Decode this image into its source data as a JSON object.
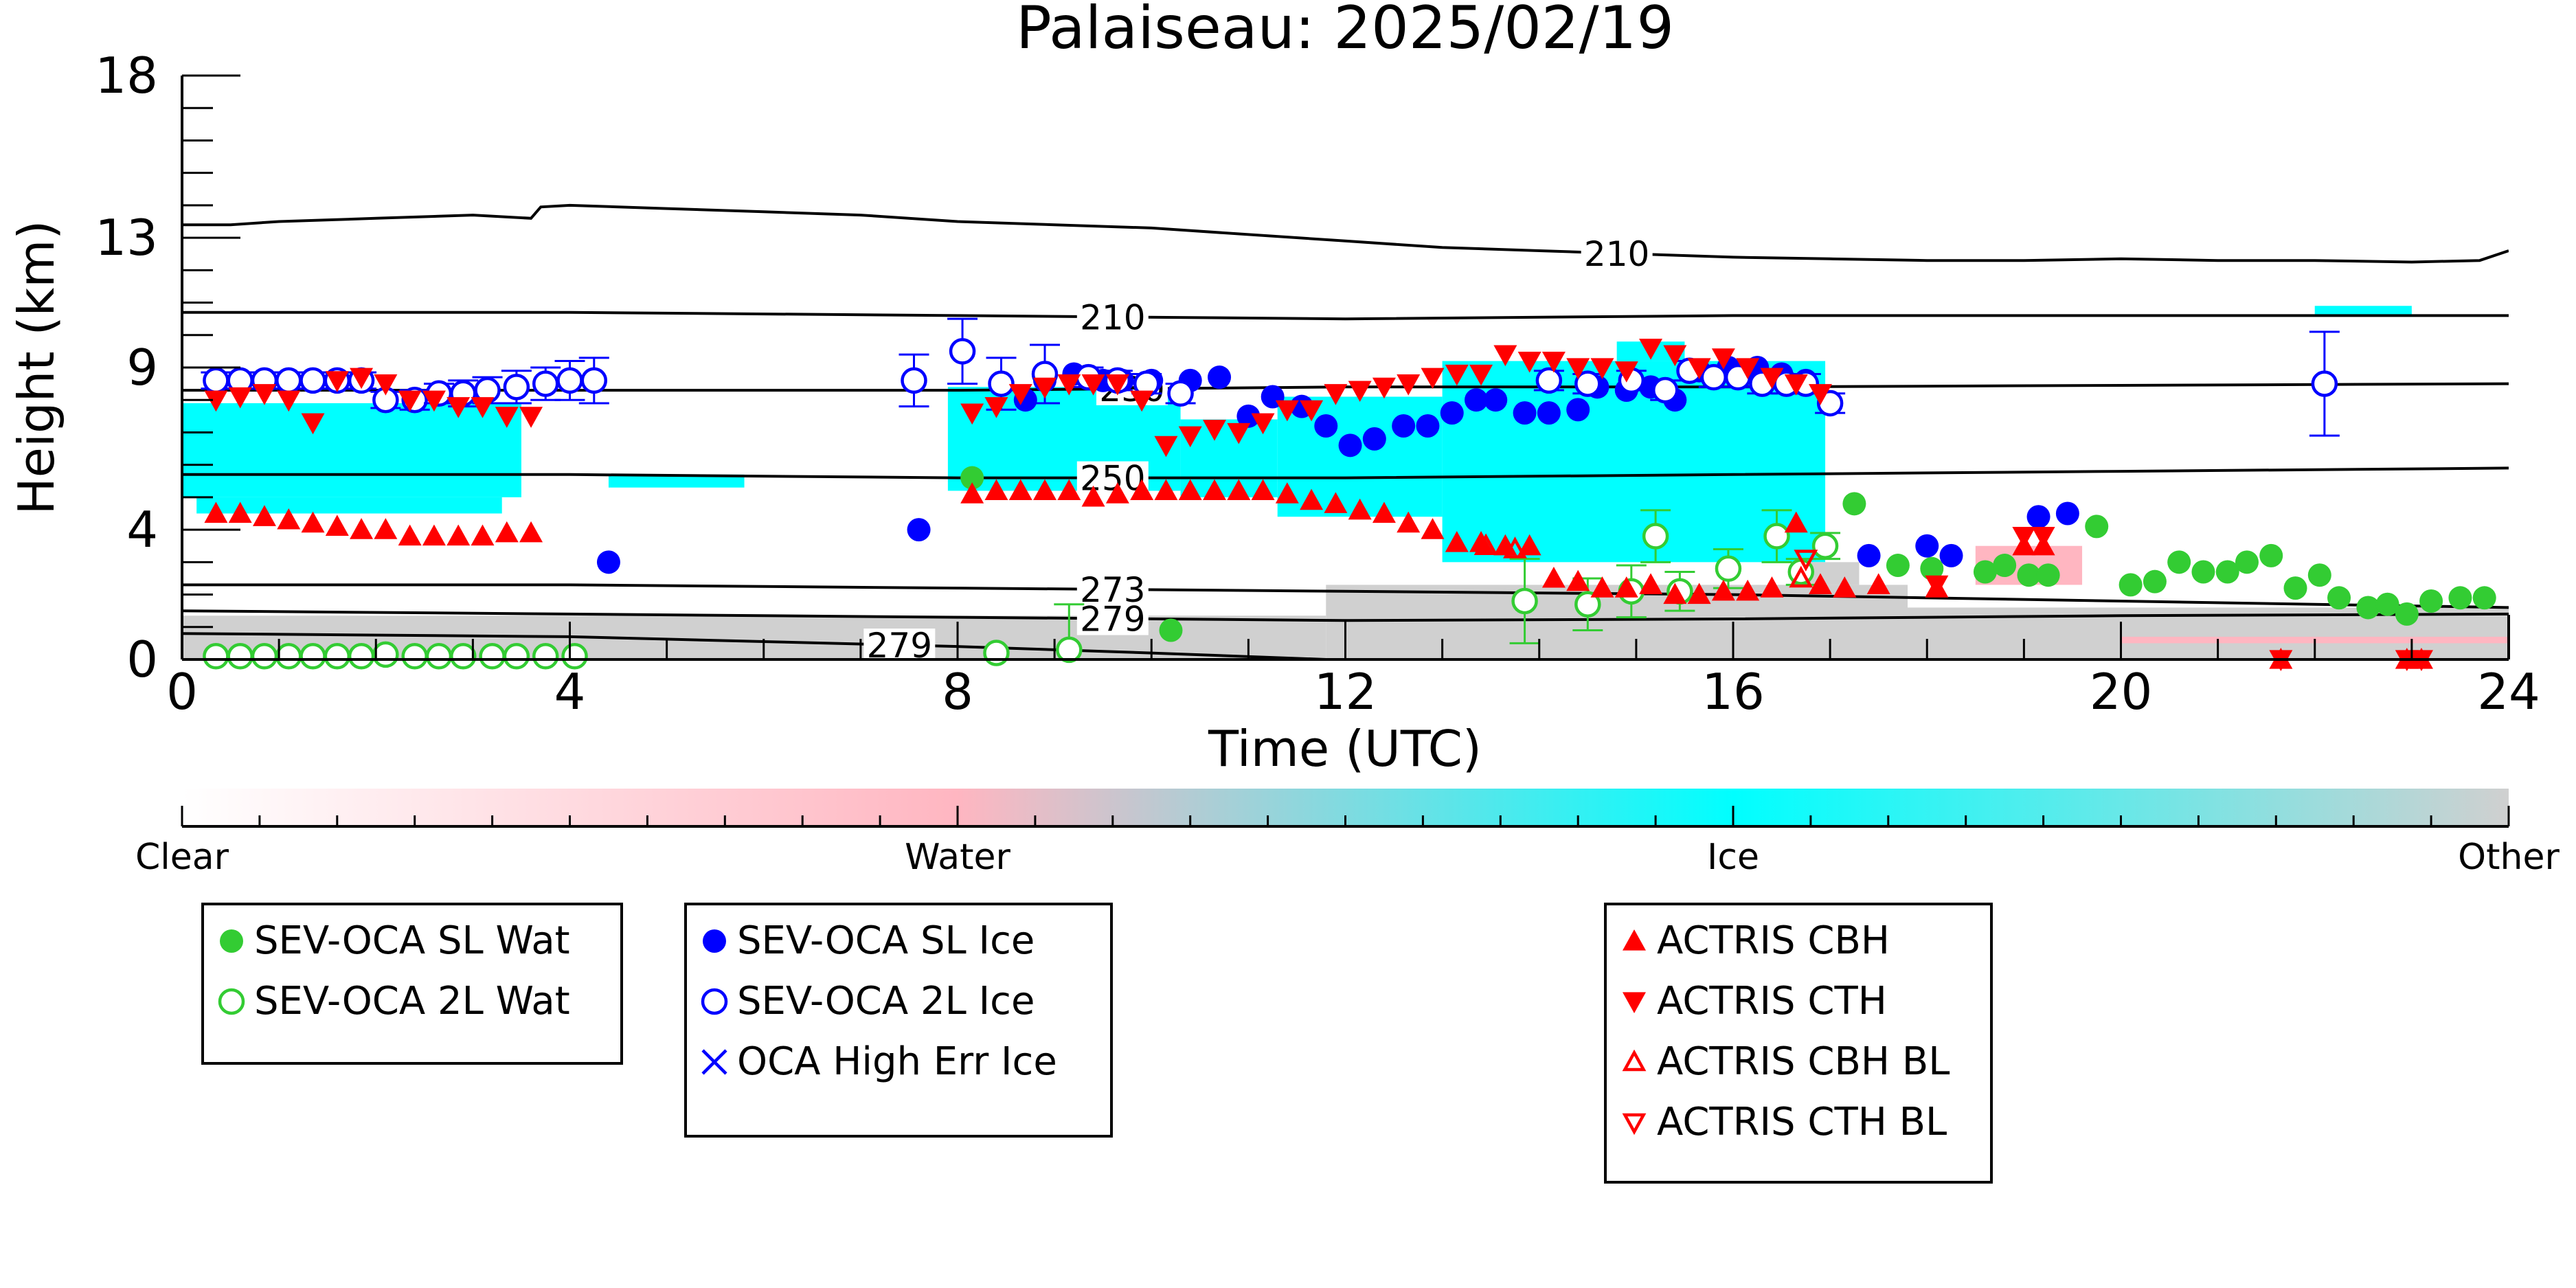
{
  "chart_data": {
    "type": "scatter",
    "title": "Palaiseau: 2025/02/19",
    "xlabel": "Time (UTC)",
    "ylabel": "Height (km)",
    "xlim": [
      0,
      24
    ],
    "ylim": [
      0,
      18
    ],
    "xticks": [
      0,
      4,
      8,
      12,
      16,
      20,
      24
    ],
    "yticks": [
      0,
      4,
      9,
      13,
      18
    ],
    "grid": false,
    "colors": {
      "water_marker": "#33cc33",
      "ice_marker": "#0000ff",
      "actris_marker": "#ff0000",
      "ice_mask": "#00ffff",
      "other_mask": "#d0d0d0",
      "water_mask": "#ffb6c1"
    },
    "colorbar": {
      "labels": [
        "Clear",
        "Water",
        "Ice",
        "Other"
      ],
      "colors": [
        "#ffffff",
        "#ffb6c1",
        "#00ffff",
        "#d0d0d0"
      ]
    },
    "contours": [
      {
        "label": "210",
        "label_x": 14.8,
        "x": [
          0,
          0.5,
          1,
          2,
          3,
          3.6,
          3.7,
          4,
          5,
          6,
          7,
          8,
          9,
          10,
          11,
          12,
          13,
          14,
          15,
          16,
          17,
          18,
          19,
          20,
          21,
          22,
          23,
          23.7,
          24
        ],
        "y": [
          13.4,
          13.4,
          13.5,
          13.6,
          13.7,
          13.6,
          13.95,
          14.0,
          13.9,
          13.8,
          13.7,
          13.5,
          13.4,
          13.3,
          13.1,
          12.9,
          12.7,
          12.6,
          12.5,
          12.4,
          12.35,
          12.3,
          12.3,
          12.35,
          12.3,
          12.3,
          12.25,
          12.3,
          12.6
        ]
      },
      {
        "label": "210",
        "label_x": 9.6,
        "x": [
          0,
          4,
          8,
          12,
          16,
          20,
          24
        ],
        "y": [
          10.7,
          10.7,
          10.6,
          10.5,
          10.6,
          10.6,
          10.6
        ]
      },
      {
        "label": "230",
        "label_x": 9.8,
        "x": [
          0,
          4,
          8,
          12,
          16,
          20,
          24
        ],
        "y": [
          8.3,
          8.3,
          8.3,
          8.4,
          8.4,
          8.45,
          8.5
        ]
      },
      {
        "label": "250",
        "label_x": 9.6,
        "x": [
          0,
          4,
          8,
          12,
          16,
          20,
          24
        ],
        "y": [
          5.7,
          5.7,
          5.6,
          5.6,
          5.7,
          5.8,
          5.9
        ]
      },
      {
        "label": "273",
        "label_x": 9.6,
        "x": [
          0,
          4,
          8,
          12,
          16,
          20,
          24
        ],
        "y": [
          2.3,
          2.3,
          2.2,
          2.1,
          2.0,
          1.8,
          1.6
        ]
      },
      {
        "label": "279",
        "label_x": 9.6,
        "x": [
          0,
          4,
          8,
          12,
          16,
          20,
          24
        ],
        "y": [
          1.5,
          1.4,
          1.3,
          1.2,
          1.25,
          1.35,
          1.4
        ]
      },
      {
        "label": "279",
        "label_x": 7.4,
        "x": [
          0,
          4,
          6,
          8,
          10,
          11.8
        ],
        "y": [
          0.8,
          0.7,
          0.55,
          0.4,
          0.2,
          0.0
        ]
      }
    ],
    "series": [
      {
        "name": "SEV-OCA SL Wat",
        "marker": "circle-filled",
        "color": "#33cc33",
        "x": [
          8.15,
          10.2,
          17.25,
          17.7,
          18.05,
          18.6,
          18.8,
          19.05,
          19.25,
          19.75,
          20.1,
          20.35,
          20.6,
          20.85,
          21.1,
          21.3,
          21.55,
          21.8,
          22.05,
          22.25,
          22.55,
          22.75,
          22.95,
          23.2,
          23.5,
          23.75
        ],
        "y": [
          5.6,
          0.9,
          4.8,
          2.9,
          2.8,
          2.7,
          2.9,
          2.6,
          2.6,
          4.1,
          2.3,
          2.4,
          3.0,
          2.7,
          2.7,
          3.0,
          3.2,
          2.2,
          2.6,
          1.9,
          1.6,
          1.7,
          1.4,
          1.8,
          1.9,
          1.9
        ]
      },
      {
        "name": "SEV-OCA 2L Wat",
        "marker": "circle-open",
        "color": "#33cc33",
        "err": [
          0,
          0,
          0,
          0,
          0,
          0,
          0,
          0,
          0,
          0,
          0,
          0,
          0,
          0,
          0,
          0,
          1.4,
          1.3,
          0.8,
          0.8,
          0.8,
          0.6,
          0.6,
          0.8,
          0.4,
          0.4
        ],
        "x": [
          0.35,
          0.6,
          0.85,
          1.1,
          1.35,
          1.6,
          1.85,
          2.1,
          2.4,
          2.65,
          2.9,
          3.2,
          3.45,
          3.75,
          4.05,
          8.4,
          9.15,
          13.85,
          14.5,
          14.95,
          15.2,
          15.45,
          15.95,
          16.45,
          16.7,
          16.95
        ],
        "y": [
          0.1,
          0.1,
          0.1,
          0.1,
          0.1,
          0.1,
          0.1,
          0.15,
          0.1,
          0.1,
          0.1,
          0.1,
          0.1,
          0.1,
          0.1,
          0.2,
          0.3,
          1.8,
          1.7,
          2.1,
          3.8,
          2.1,
          2.8,
          3.8,
          2.7,
          3.5
        ]
      },
      {
        "name": "SEV-OCA SL Ice",
        "marker": "circle-filled",
        "color": "#0000ff",
        "x": [
          4.4,
          7.6,
          8.7,
          8.9,
          9.2,
          9.5,
          9.7,
          10.0,
          10.4,
          10.7,
          11.0,
          11.25,
          11.55,
          11.8,
          12.05,
          12.3,
          12.6,
          12.85,
          13.1,
          13.35,
          13.55,
          13.85,
          14.1,
          14.4,
          14.6,
          14.9,
          15.15,
          15.4,
          15.65,
          15.95,
          16.25,
          16.5,
          16.75,
          17.4,
          18.0,
          18.25,
          19.15,
          19.45
        ],
        "y": [
          3.0,
          4.0,
          8.0,
          8.6,
          8.8,
          8.6,
          8.6,
          8.6,
          8.6,
          8.7,
          7.5,
          8.1,
          7.8,
          7.2,
          6.6,
          6.8,
          7.2,
          7.2,
          7.6,
          8.0,
          8.0,
          7.6,
          7.6,
          7.7,
          8.4,
          8.3,
          8.4,
          8.0,
          8.9,
          9.0,
          9.0,
          8.8,
          8.6,
          3.2,
          3.5,
          3.2,
          4.4,
          4.5
        ]
      },
      {
        "name": "SEV-OCA 2L Ice",
        "marker": "circle-open",
        "color": "#0000ff",
        "err": [
          0.25,
          0.25,
          0.25,
          0.25,
          0.25,
          0.25,
          0.25,
          0.25,
          0.3,
          0.3,
          0.4,
          0.4,
          0.5,
          0.5,
          0.6,
          0.7,
          0.8,
          1.0,
          0.8,
          0.9,
          0.3,
          0.3,
          0.3,
          0.3,
          0.3,
          0.3,
          0.3,
          0.3,
          0.3,
          0.3,
          0.3,
          0.3,
          0.3,
          0.3,
          0.3,
          1.6
        ],
        "x": [
          0.35,
          0.6,
          0.85,
          1.1,
          1.35,
          1.6,
          1.85,
          2.1,
          2.4,
          2.65,
          2.9,
          3.15,
          3.45,
          3.75,
          4.0,
          4.25,
          7.55,
          8.05,
          8.45,
          8.9,
          9.35,
          9.65,
          9.95,
          10.3,
          14.1,
          14.5,
          14.95,
          15.3,
          15.55,
          15.8,
          16.05,
          16.3,
          16.55,
          16.75,
          17.0,
          22.1
        ],
        "y": [
          8.6,
          8.6,
          8.6,
          8.6,
          8.6,
          8.6,
          8.6,
          8.0,
          8.0,
          8.2,
          8.2,
          8.3,
          8.4,
          8.5,
          8.6,
          8.6,
          8.6,
          9.5,
          8.5,
          8.8,
          8.7,
          8.6,
          8.5,
          8.2,
          8.6,
          8.5,
          8.6,
          8.3,
          8.9,
          8.7,
          8.7,
          8.5,
          8.5,
          8.5,
          7.9,
          8.5
        ]
      },
      {
        "name": "OCA High Err Ice",
        "marker": "x",
        "color": "#0000ff",
        "x": [],
        "y": []
      },
      {
        "name": "ACTRIS CBH",
        "marker": "triangle-up-filled",
        "color": "#ff0000",
        "x": [
          0.35,
          0.6,
          0.85,
          1.1,
          1.35,
          1.6,
          1.85,
          2.1,
          2.35,
          2.6,
          2.85,
          3.1,
          3.35,
          3.6,
          8.15,
          8.4,
          8.65,
          8.9,
          9.15,
          9.4,
          9.65,
          9.9,
          10.15,
          10.4,
          10.65,
          10.9,
          11.15,
          11.4,
          11.65,
          11.9,
          12.15,
          12.4,
          12.65,
          12.9,
          13.15,
          13.4,
          13.65,
          13.9,
          14.15,
          14.4,
          14.65,
          14.9,
          15.15,
          15.4,
          15.65,
          15.9,
          16.15,
          16.4,
          16.65,
          16.9,
          17.15,
          17.5,
          18.1,
          19.0,
          19.2,
          21.65,
          22.95,
          23.1
        ],
        "y": [
          4.5,
          4.5,
          4.4,
          4.3,
          4.2,
          4.1,
          4.0,
          4.0,
          3.8,
          3.8,
          3.8,
          3.8,
          3.9,
          3.9,
          5.1,
          5.2,
          5.2,
          5.2,
          5.2,
          5.0,
          5.1,
          5.2,
          5.2,
          5.2,
          5.2,
          5.2,
          5.2,
          5.1,
          4.9,
          4.8,
          4.6,
          4.5,
          4.2,
          4.0,
          3.6,
          3.6,
          3.5,
          3.5,
          2.5,
          2.4,
          2.2,
          2.2,
          2.3,
          2.0,
          2.0,
          2.1,
          2.1,
          2.2,
          4.2,
          2.3,
          2.2,
          2.3,
          2.2,
          3.5,
          3.5,
          0.0,
          0.0,
          0.0
        ]
      },
      {
        "name": "ACTRIS CTH",
        "marker": "triangle-down-filled",
        "color": "#ff0000",
        "x": [
          0.35,
          0.6,
          0.85,
          1.1,
          1.35,
          1.6,
          1.85,
          2.1,
          2.35,
          2.6,
          2.85,
          3.1,
          3.35,
          3.6,
          8.15,
          8.4,
          8.65,
          8.9,
          9.15,
          9.4,
          9.65,
          9.9,
          10.15,
          10.4,
          10.65,
          10.9,
          11.15,
          11.4,
          11.65,
          11.9,
          12.15,
          12.4,
          12.65,
          12.9,
          13.15,
          13.4,
          13.65,
          13.9,
          14.15,
          14.4,
          14.65,
          14.9,
          15.15,
          15.4,
          15.65,
          15.9,
          16.15,
          16.4,
          16.65,
          16.9,
          18.1,
          19.0,
          19.2,
          21.65,
          22.95,
          23.1
        ],
        "y": [
          8.0,
          8.1,
          8.2,
          8.0,
          7.3,
          8.6,
          8.7,
          8.5,
          8.0,
          8.0,
          7.8,
          7.8,
          7.5,
          7.5,
          7.6,
          7.8,
          8.2,
          8.4,
          8.5,
          8.5,
          8.5,
          8.0,
          6.6,
          6.9,
          7.1,
          7.0,
          7.3,
          7.7,
          7.7,
          8.2,
          8.3,
          8.4,
          8.5,
          8.7,
          8.8,
          8.8,
          9.4,
          9.2,
          9.2,
          9.0,
          9.0,
          8.9,
          9.6,
          9.4,
          9.0,
          9.3,
          9.0,
          8.7,
          8.5,
          8.2,
          2.3,
          3.8,
          3.8,
          0.0,
          0.0,
          0.0
        ]
      },
      {
        "name": "ACTRIS CBH BL",
        "marker": "triangle-up-open",
        "color": "#ff0000",
        "x": [
          13.45,
          13.75,
          16.7
        ],
        "y": [
          3.5,
          3.4,
          2.5
        ]
      },
      {
        "name": "ACTRIS CTH BL",
        "marker": "triangle-down-open",
        "color": "#ff0000",
        "x": [
          16.75
        ],
        "y": [
          3.1
        ]
      }
    ],
    "legends": [
      {
        "entries": [
          "SEV-OCA SL Wat",
          "SEV-OCA 2L Wat"
        ]
      },
      {
        "entries": [
          "SEV-OCA SL Ice",
          "SEV-OCA 2L Ice",
          "OCA High Err Ice"
        ]
      },
      {
        "entries": [
          "ACTRIS CBH",
          "ACTRIS CTH",
          "ACTRIS CBH BL",
          "ACTRIS CTH BL"
        ]
      }
    ]
  }
}
